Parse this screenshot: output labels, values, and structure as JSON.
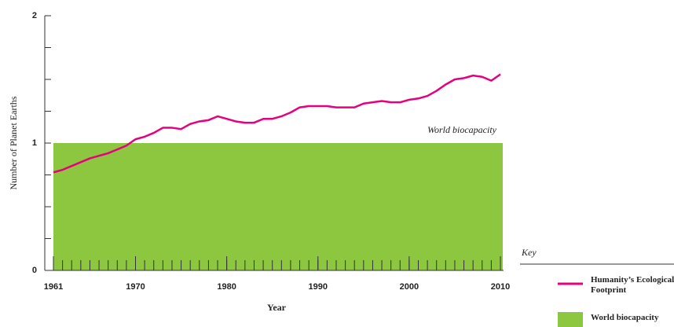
{
  "chart_data": {
    "type": "line",
    "x_label": "Year",
    "y_label": "Number of Planet Earths",
    "x": [
      1961,
      1962,
      1963,
      1964,
      1965,
      1966,
      1967,
      1968,
      1969,
      1970,
      1971,
      1972,
      1973,
      1974,
      1975,
      1976,
      1977,
      1978,
      1979,
      1980,
      1981,
      1982,
      1983,
      1984,
      1985,
      1986,
      1987,
      1988,
      1989,
      1990,
      1991,
      1992,
      1993,
      1994,
      1995,
      1996,
      1997,
      1998,
      1999,
      2000,
      2001,
      2002,
      2003,
      2004,
      2005,
      2006,
      2007,
      2008,
      2009,
      2010
    ],
    "series": [
      {
        "name": "Humanity’s Ecological Footprint",
        "color": "#e6007e",
        "values": [
          0.77,
          0.79,
          0.82,
          0.85,
          0.88,
          0.9,
          0.92,
          0.95,
          0.98,
          1.03,
          1.05,
          1.08,
          1.12,
          1.12,
          1.11,
          1.15,
          1.17,
          1.18,
          1.21,
          1.19,
          1.17,
          1.16,
          1.16,
          1.19,
          1.19,
          1.21,
          1.24,
          1.28,
          1.29,
          1.29,
          1.29,
          1.28,
          1.28,
          1.28,
          1.31,
          1.32,
          1.33,
          1.32,
          1.32,
          1.34,
          1.35,
          1.37,
          1.41,
          1.46,
          1.5,
          1.51,
          1.53,
          1.52,
          1.49,
          1.54
        ]
      }
    ],
    "biocapacity": {
      "name": "World biocapacity",
      "color": "#8dc63f",
      "value": 1
    },
    "annotation": "World biocapacity",
    "legend_title": "Key",
    "xlim": [
      1961,
      2010
    ],
    "xticks": [
      1961,
      1970,
      1980,
      1990,
      2000,
      2010
    ],
    "ylim": [
      0,
      2
    ],
    "yticks": [
      0,
      1,
      2
    ],
    "yminorticks": [
      0.25,
      0.5,
      0.75,
      1.25,
      1.5,
      1.75
    ]
  }
}
